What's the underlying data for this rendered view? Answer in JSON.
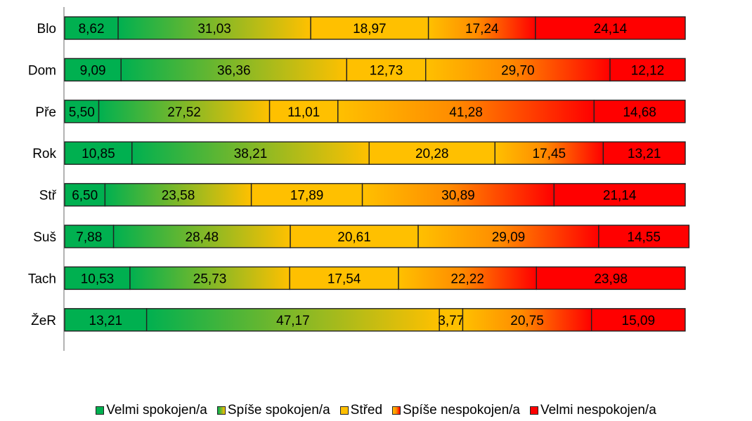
{
  "chart_data": {
    "type": "bar",
    "orientation": "horizontal",
    "stacked": true,
    "percent": true,
    "categories": [
      "Blo",
      "Dom",
      "Pře",
      "Rok",
      "Stř",
      "Suš",
      "Tach",
      "ŽeR"
    ],
    "series": [
      {
        "name": "Velmi spokojen/a",
        "values": [
          "8,62",
          "9,09",
          "5,50",
          "10,85",
          "6,50",
          "7,88",
          "10,53",
          "13,21"
        ]
      },
      {
        "name": "Spíše spokojen/a",
        "values": [
          "31,03",
          "36,36",
          "27,52",
          "38,21",
          "23,58",
          "28,48",
          "25,73",
          "47,17"
        ]
      },
      {
        "name": "Střed",
        "values": [
          "18,97",
          "12,73",
          "11,01",
          "20,28",
          "17,89",
          "20,61",
          "17,54",
          "3,77"
        ]
      },
      {
        "name": "Spíše nespokojen/a",
        "values": [
          "17,24",
          "29,70",
          "41,28",
          "17,45",
          "30,89",
          "29,09",
          "22,22",
          "20,75"
        ]
      },
      {
        "name": "Velmi nespokojen/a",
        "values": [
          "24,14",
          "12,12",
          "14,68",
          "13,21",
          "21,14",
          "14,55",
          "23,98",
          "15,09"
        ]
      }
    ],
    "xlim": [
      0,
      100
    ],
    "legend_position": "bottom",
    "grid": false,
    "colors": {
      "green": "#00b050",
      "yellow": "#ffc000",
      "red": "#ff0000",
      "border": "#222222"
    }
  }
}
